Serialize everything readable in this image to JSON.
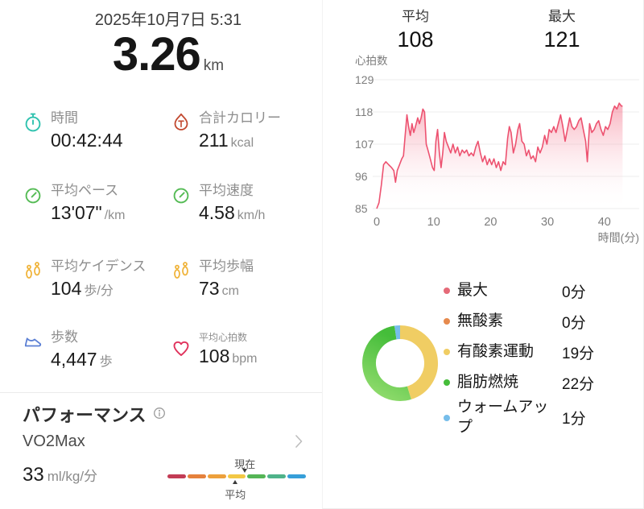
{
  "left": {
    "date": "2025年10月7日 5:31",
    "distance": {
      "value": "3.26",
      "unit": "km"
    },
    "stats": [
      {
        "label": "時間",
        "value": "00:42:44",
        "unit": "",
        "icon": "stopwatch-icon",
        "color": "#2fc2af"
      },
      {
        "label": "合計カロリー",
        "value": "211",
        "unit": "kcal",
        "icon": "calories-icon",
        "color": "#c2482f"
      },
      {
        "label": "平均ペース",
        "value": "13'07\"",
        "unit": "/km",
        "icon": "pace-gauge-icon",
        "color": "#55bb55"
      },
      {
        "label": "平均速度",
        "value": "4.58",
        "unit": "km/h",
        "icon": "speed-gauge-icon",
        "color": "#55bb55"
      },
      {
        "label": "平均ケイデンス",
        "value": "104",
        "unit": "歩/分",
        "icon": "footprints-icon",
        "color": "#f0b43c"
      },
      {
        "label": "平均歩幅",
        "value": "73",
        "unit": "cm",
        "icon": "footprints-icon",
        "color": "#f0b43c"
      },
      {
        "label": "歩数",
        "value": "4,447",
        "unit": "歩",
        "icon": "shoe-icon",
        "color": "#5b7fd4"
      },
      {
        "label": "平均心拍数",
        "value": "108",
        "unit": "bpm",
        "icon": "heart-icon",
        "color": "#e0315b"
      }
    ],
    "performance": {
      "title": "パフォーマンス",
      "metric": "VO2Max",
      "value": "33",
      "unit": "ml/kg/分",
      "current_label": "現在",
      "average_label": "平均",
      "bar_colors": [
        "#c33c55",
        "#e5813c",
        "#eda03b",
        "#f3c845",
        "#55b556",
        "#4fb38a",
        "#369fd9"
      ],
      "current_marker_pct": 56,
      "average_marker_pct": 49
    }
  },
  "right": {
    "summary": [
      {
        "label": "平均",
        "value": "108"
      },
      {
        "label": "最大",
        "value": "121"
      }
    ]
  },
  "chart_data": [
    {
      "type": "area",
      "title": "心拍数",
      "xlabel": "時間(分)",
      "ylabel": "",
      "yticks": [
        85,
        96,
        107,
        118,
        129
      ],
      "xticks": [
        0,
        10,
        20,
        30,
        40
      ],
      "ylim": [
        85,
        129
      ],
      "xlim": [
        0,
        43.5
      ],
      "grid": true,
      "legend_position": "none",
      "line_color": "#ed5270",
      "fill_top_color": "rgba(242,105,130,0.52)",
      "fill_bottom_color": "rgba(255,255,255,0.02)",
      "series": [
        {
          "name": "心拍数",
          "points": [
            [
              0,
              85
            ],
            [
              0.4,
              87
            ],
            [
              0.8,
              93
            ],
            [
              1.2,
              100
            ],
            [
              1.6,
              101
            ],
            [
              2.1,
              100
            ],
            [
              2.6,
              99
            ],
            [
              3.0,
              98
            ],
            [
              3.3,
              94
            ],
            [
              3.6,
              98
            ],
            [
              4.0,
              100
            ],
            [
              4.4,
              102
            ],
            [
              4.7,
              103
            ],
            [
              5.0,
              110
            ],
            [
              5.3,
              117
            ],
            [
              5.6,
              113
            ],
            [
              5.9,
              110
            ],
            [
              6.2,
              114
            ],
            [
              6.5,
              111
            ],
            [
              6.8,
              113
            ],
            [
              7.2,
              116
            ],
            [
              7.5,
              114
            ],
            [
              7.8,
              116
            ],
            [
              8.1,
              119
            ],
            [
              8.4,
              118
            ],
            [
              8.7,
              107
            ],
            [
              9.0,
              105
            ],
            [
              9.4,
              102
            ],
            [
              9.8,
              99
            ],
            [
              10.1,
              98
            ],
            [
              10.4,
              108
            ],
            [
              10.7,
              112
            ],
            [
              11.0,
              104
            ],
            [
              11.3,
              99
            ],
            [
              11.6,
              104
            ],
            [
              11.9,
              111
            ],
            [
              12.2,
              108
            ],
            [
              12.6,
              106
            ],
            [
              13.0,
              104
            ],
            [
              13.4,
              107
            ],
            [
              13.8,
              104
            ],
            [
              14.2,
              106
            ],
            [
              14.6,
              103
            ],
            [
              15.0,
              105
            ],
            [
              15.4,
              104
            ],
            [
              15.8,
              105
            ],
            [
              16.2,
              103
            ],
            [
              16.6,
              104
            ],
            [
              17.0,
              103
            ],
            [
              17.4,
              106
            ],
            [
              17.8,
              108
            ],
            [
              18.2,
              104
            ],
            [
              18.6,
              101
            ],
            [
              19.0,
              103
            ],
            [
              19.4,
              100
            ],
            [
              19.8,
              102
            ],
            [
              20.2,
              100
            ],
            [
              20.6,
              102
            ],
            [
              21.0,
              99
            ],
            [
              21.4,
              101
            ],
            [
              21.8,
              98
            ],
            [
              22.2,
              101
            ],
            [
              22.6,
              100
            ],
            [
              23.0,
              109
            ],
            [
              23.3,
              113
            ],
            [
              23.6,
              111
            ],
            [
              24.0,
              104
            ],
            [
              24.4,
              107
            ],
            [
              24.8,
              112
            ],
            [
              25.1,
              114
            ],
            [
              25.5,
              108
            ],
            [
              25.9,
              107
            ],
            [
              26.3,
              103
            ],
            [
              26.7,
              105
            ],
            [
              27.1,
              102
            ],
            [
              27.5,
              103
            ],
            [
              27.9,
              101
            ],
            [
              28.3,
              106
            ],
            [
              28.7,
              104
            ],
            [
              29.1,
              106
            ],
            [
              29.5,
              110
            ],
            [
              29.9,
              107
            ],
            [
              30.3,
              112
            ],
            [
              30.7,
              111
            ],
            [
              31.1,
              113
            ],
            [
              31.5,
              111
            ],
            [
              31.9,
              114
            ],
            [
              32.3,
              117
            ],
            [
              32.7,
              113
            ],
            [
              33.1,
              108
            ],
            [
              33.5,
              112
            ],
            [
              33.9,
              116
            ],
            [
              34.3,
              113
            ],
            [
              34.7,
              112
            ],
            [
              35.1,
              113
            ],
            [
              35.5,
              115
            ],
            [
              35.9,
              116
            ],
            [
              36.3,
              112
            ],
            [
              36.7,
              108
            ],
            [
              37.0,
              101
            ],
            [
              37.4,
              114
            ],
            [
              37.8,
              111
            ],
            [
              38.2,
              112
            ],
            [
              38.6,
              114
            ],
            [
              39.0,
              115
            ],
            [
              39.4,
              112
            ],
            [
              39.8,
              110
            ],
            [
              40.2,
              113
            ],
            [
              40.6,
              112
            ],
            [
              41.0,
              114
            ],
            [
              41.4,
              118
            ],
            [
              41.8,
              120
            ],
            [
              42.2,
              119
            ],
            [
              42.6,
              121
            ],
            [
              43.0,
              120
            ],
            [
              43.2,
              120
            ]
          ]
        }
      ]
    },
    {
      "type": "pie",
      "style": "donut",
      "total_minutes": 42,
      "legend_position": "right",
      "zones": [
        {
          "label": "最大",
          "minutes": 0,
          "duration": "0分",
          "color": "#e56a78"
        },
        {
          "label": "無酸素",
          "minutes": 0,
          "duration": "0分",
          "color": "#e68a4d"
        },
        {
          "label": "有酸素運動",
          "minutes": 19,
          "duration": "19分",
          "color": "#f0cd63"
        },
        {
          "label": "脂肪燃焼",
          "minutes": 22,
          "duration": "22分",
          "color": "#45bd3a",
          "color2": "#92dc6e"
        },
        {
          "label": "ウォームアップ",
          "minutes": 1,
          "duration": "1分",
          "color": "#76bdea"
        }
      ]
    }
  ]
}
